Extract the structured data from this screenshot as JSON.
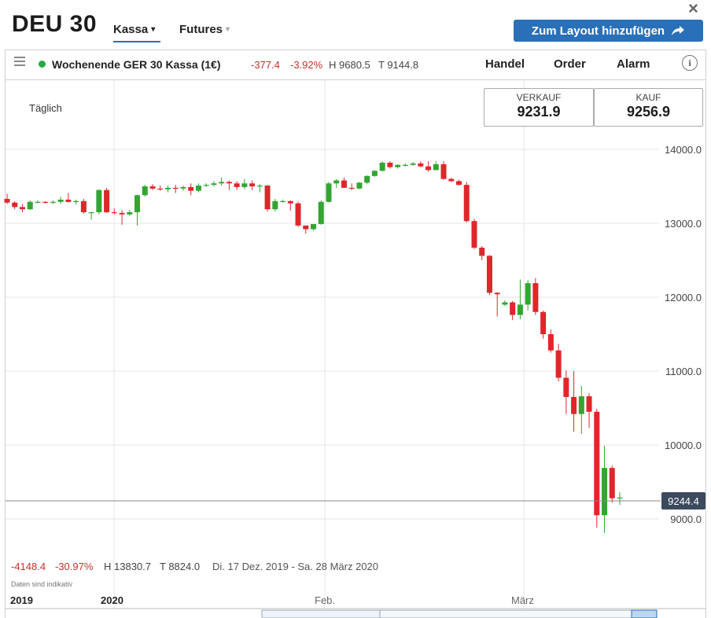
{
  "header": {
    "title": "DEU 30",
    "nav": [
      {
        "label": "Kassa",
        "chevron": "▾",
        "active": true
      },
      {
        "label": "Futures",
        "chevron": "▾",
        "active": false
      }
    ],
    "close_icon": "×",
    "layout_button": {
      "label": "Zum Layout hinzufügen",
      "icon": "share-arrow-icon"
    }
  },
  "infobar": {
    "instrument": "Wochenende GER 30 Kassa (1€)",
    "change": "-377.4",
    "change_pct": "-3.92%",
    "high": "H 9680.5",
    "low": "T 9144.8",
    "tabs": [
      "Handel",
      "Order",
      "Alarm"
    ],
    "info_icon": "i"
  },
  "chart_panel": {
    "period": "Täglich",
    "sell": {
      "label": "VERKAUF",
      "value": "9231.9"
    },
    "buy": {
      "label": "KAUF",
      "value": "9256.9"
    },
    "current_price": "9244.4",
    "footer": {
      "change": "-4148.4",
      "change_pct": "-30.97%",
      "high": "H 13830.7",
      "low": "T 8824.0",
      "range": "Di. 17 Dez. 2019 - Sa. 28 März 2020"
    },
    "disclaimer": "Daten sind indikativ",
    "time_labels": [
      "2019",
      "2020",
      "Feb.",
      "März"
    ],
    "colors": {
      "up": "#33a532",
      "down": "#e0262b",
      "grid": "#e6e6e6",
      "accent": "#2a70b8"
    }
  },
  "chart_data": {
    "type": "candlestick",
    "title": "",
    "xlabel": "",
    "ylabel": "",
    "ylim": [
      8450,
      14550
    ],
    "y_ticks": [
      "14000.0",
      "13000.0",
      "12000.0",
      "11000.0",
      "10000.0",
      "9000.0"
    ],
    "last": 9244.4,
    "candles": [
      [
        13330,
        13400,
        13260,
        13280
      ],
      [
        13280,
        13300,
        13190,
        13220
      ],
      [
        13220,
        13260,
        13150,
        13190
      ],
      [
        13190,
        13310,
        13180,
        13290
      ],
      [
        13290,
        13310,
        13270,
        13290
      ],
      [
        13290,
        13300,
        13270,
        13280
      ],
      [
        13280,
        13310,
        13260,
        13290
      ],
      [
        13290,
        13360,
        13260,
        13320
      ],
      [
        13320,
        13410,
        13280,
        13290
      ],
      [
        13290,
        13320,
        13250,
        13300
      ],
      [
        13300,
        13330,
        13130,
        13150
      ],
      [
        13150,
        13140,
        13050,
        13150
      ],
      [
        13150,
        13460,
        13120,
        13450
      ],
      [
        13450,
        13480,
        13140,
        13150
      ],
      [
        13150,
        13200,
        13120,
        13140
      ],
      [
        13140,
        13180,
        12980,
        13120
      ],
      [
        13120,
        13180,
        13100,
        13150
      ],
      [
        13150,
        13390,
        12970,
        13380
      ],
      [
        13380,
        13520,
        13360,
        13500
      ],
      [
        13500,
        13530,
        13450,
        13470
      ],
      [
        13470,
        13510,
        13440,
        13460
      ],
      [
        13460,
        13510,
        13420,
        13480
      ],
      [
        13480,
        13520,
        13410,
        13470
      ],
      [
        13470,
        13510,
        13440,
        13490
      ],
      [
        13490,
        13540,
        13380,
        13440
      ],
      [
        13440,
        13540,
        13420,
        13510
      ],
      [
        13510,
        13540,
        13490,
        13520
      ],
      [
        13520,
        13570,
        13500,
        13540
      ],
      [
        13540,
        13620,
        13510,
        13560
      ],
      [
        13560,
        13580,
        13450,
        13540
      ],
      [
        13540,
        13570,
        13450,
        13490
      ],
      [
        13490,
        13600,
        13460,
        13540
      ],
      [
        13540,
        13580,
        13450,
        13500
      ],
      [
        13500,
        13530,
        13420,
        13510
      ],
      [
        13510,
        13520,
        13160,
        13190
      ],
      [
        13190,
        13330,
        13160,
        13300
      ],
      [
        13300,
        13320,
        13280,
        13300
      ],
      [
        13300,
        13310,
        13170,
        13270
      ],
      [
        13270,
        13290,
        12950,
        12970
      ],
      [
        12970,
        12940,
        12860,
        12920
      ],
      [
        12920,
        12960,
        12900,
        12990
      ],
      [
        12990,
        13310,
        12980,
        13290
      ],
      [
        13290,
        13560,
        13280,
        13540
      ],
      [
        13540,
        13600,
        13480,
        13580
      ],
      [
        13580,
        13620,
        13480,
        13480
      ],
      [
        13480,
        13540,
        13450,
        13470
      ],
      [
        13470,
        13560,
        13460,
        13550
      ],
      [
        13550,
        13650,
        13530,
        13640
      ],
      [
        13640,
        13720,
        13630,
        13710
      ],
      [
        13710,
        13840,
        13700,
        13820
      ],
      [
        13820,
        13840,
        13740,
        13760
      ],
      [
        13760,
        13800,
        13740,
        13790
      ],
      [
        13790,
        13810,
        13770,
        13790
      ],
      [
        13790,
        13830,
        13780,
        13810
      ],
      [
        13810,
        13840,
        13760,
        13770
      ],
      [
        13770,
        13840,
        13700,
        13720
      ],
      [
        13720,
        13840,
        13720,
        13800
      ],
      [
        13800,
        13840,
        13590,
        13600
      ],
      [
        13600,
        13620,
        13560,
        13570
      ],
      [
        13570,
        13590,
        13510,
        13520
      ],
      [
        13520,
        13560,
        13010,
        13030
      ],
      [
        13030,
        13060,
        12650,
        12670
      ],
      [
        12670,
        12690,
        12500,
        12560
      ],
      [
        12560,
        12570,
        12030,
        12060
      ],
      [
        12060,
        12070,
        11740,
        12040
      ],
      [
        11900,
        11960,
        11880,
        11930
      ],
      [
        11930,
        11950,
        11690,
        11760
      ],
      [
        11760,
        12240,
        11700,
        11900
      ],
      [
        11900,
        12230,
        11820,
        12190
      ],
      [
        12190,
        12260,
        11760,
        11800
      ],
      [
        11800,
        11820,
        11440,
        11500
      ],
      [
        11500,
        11560,
        11250,
        11280
      ],
      [
        11280,
        11370,
        10860,
        10910
      ],
      [
        10910,
        11010,
        10420,
        10650
      ],
      [
        10650,
        11000,
        10180,
        10420
      ],
      [
        10420,
        10800,
        10150,
        10660
      ],
      [
        10660,
        10700,
        10230,
        10450
      ],
      [
        10450,
        10490,
        8880,
        9050
      ],
      [
        9050,
        9990,
        8810,
        9690
      ],
      [
        9690,
        9720,
        9220,
        9280
      ],
      [
        9280,
        9360,
        9190,
        9290
      ]
    ]
  }
}
